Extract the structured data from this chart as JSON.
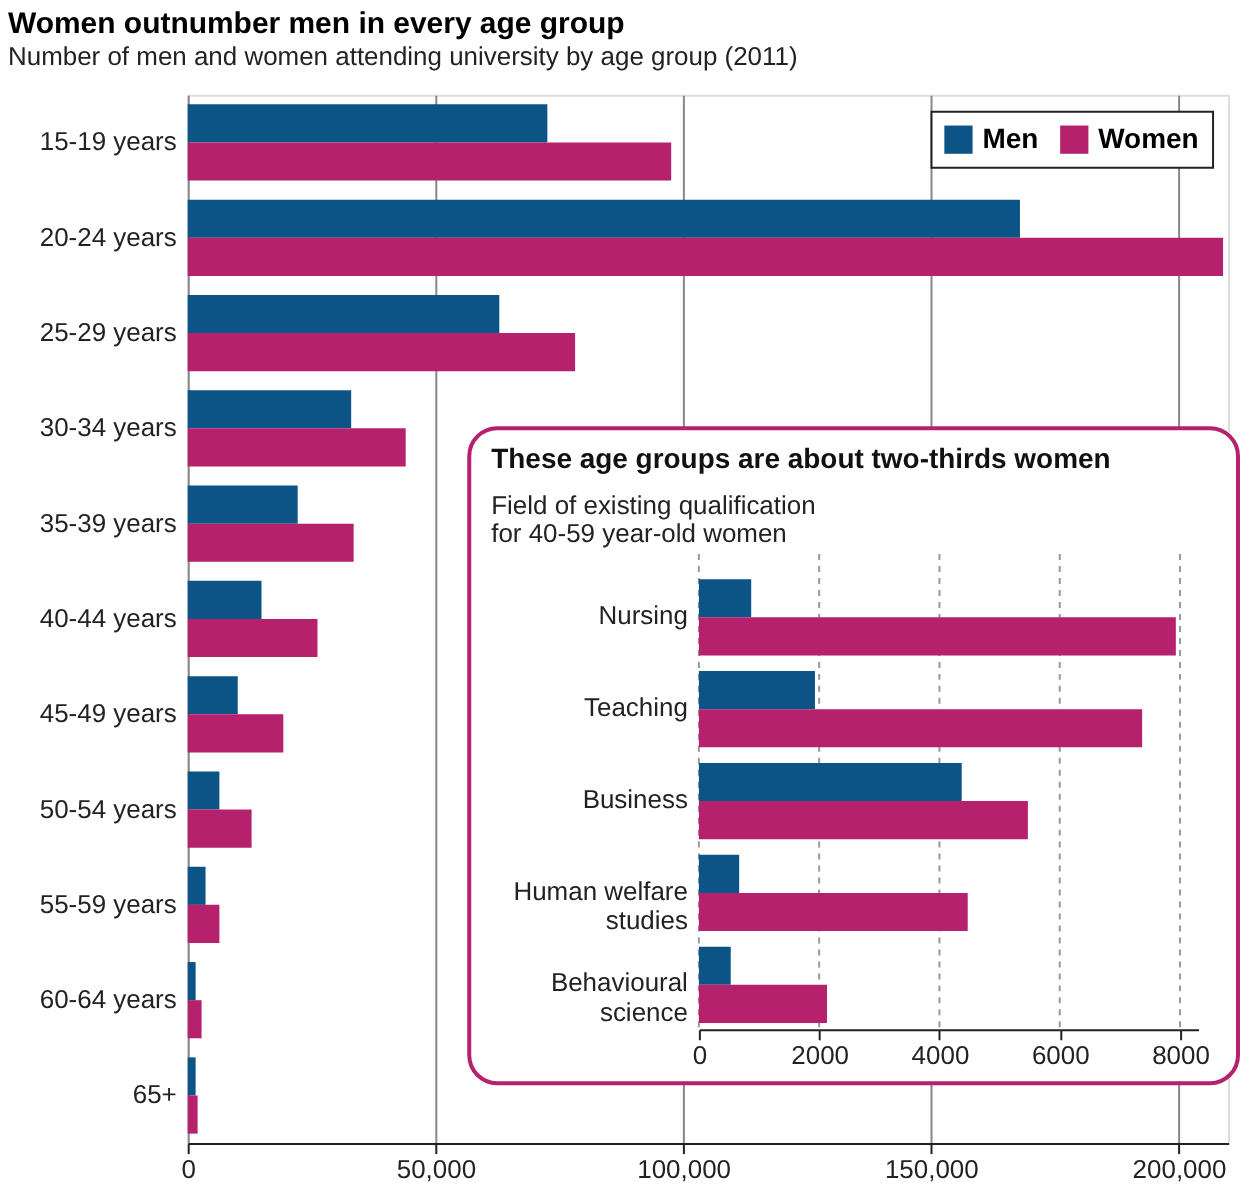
{
  "chart_data": [
    {
      "type": "bar",
      "orientation": "horizontal",
      "title": "Women outnumber men in every age group",
      "subtitle": "Number of men and women attending university by age group (2011)",
      "categories": [
        "15-19 years",
        "20-24 years",
        "25-29 years",
        "30-34 years",
        "35-39 years",
        "40-44 years",
        "45-49 years",
        "50-54 years",
        "55-59 years",
        "60-64 years",
        "65+"
      ],
      "series": [
        {
          "name": "Men",
          "color": "#0d5486",
          "values": [
            72600,
            168000,
            62900,
            33000,
            22200,
            14900,
            10100,
            6400,
            3600,
            1600,
            1600
          ]
        },
        {
          "name": "Women",
          "color": "#b5216c",
          "values": [
            97600,
            209000,
            78200,
            44000,
            33500,
            26200,
            19300,
            12900,
            6400,
            2800,
            2000
          ]
        }
      ],
      "xlim": [
        0,
        210000
      ],
      "xticks": [
        {
          "value": 0,
          "label": "0"
        },
        {
          "value": 50000,
          "label": "50,000"
        },
        {
          "value": 100000,
          "label": "100,000"
        },
        {
          "value": 150000,
          "label": "150,000"
        },
        {
          "value": 200000,
          "label": "200,000"
        }
      ],
      "grid": "x",
      "legend": "top right"
    },
    {
      "type": "bar",
      "orientation": "horizontal",
      "title": "These age groups are about two-thirds women",
      "subtitle": "Field of existing qualification for 40-59 year-old women",
      "categories": [
        "Nursing",
        "Teaching",
        "Business",
        "Human welfare studies",
        "Behavioural science"
      ],
      "series": [
        {
          "color": "#0d5486",
          "values": [
            870,
            1930,
            4370,
            670,
            530
          ]
        },
        {
          "color": "#b5216c",
          "values": [
            7930,
            7370,
            5470,
            4470,
            2130
          ]
        }
      ],
      "xlim": [
        0,
        8300
      ],
      "xticks": [
        0,
        2000,
        4000,
        6000,
        8000
      ],
      "grid": "x",
      "legend": false
    }
  ]
}
